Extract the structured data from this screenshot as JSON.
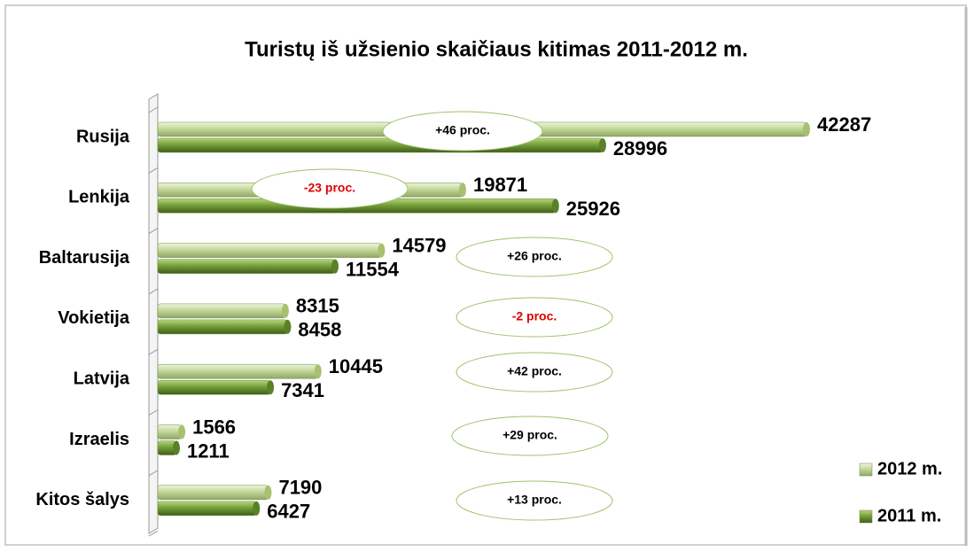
{
  "chart_data": {
    "type": "bar",
    "orientation": "horizontal",
    "title": "Turistų iš užsienio skaičiaus kitimas 2011-2012 m.",
    "categories": [
      "Rusija",
      "Lenkija",
      "Baltarusija",
      "Vokietija",
      "Latvija",
      "Izraelis",
      "Kitos šalys"
    ],
    "series": [
      {
        "name": "2012 m.",
        "color": "#c4d89a",
        "values": [
          42287,
          19871,
          14579,
          8315,
          10445,
          1566,
          7190
        ]
      },
      {
        "name": "2011 m.",
        "color": "#76a03a",
        "values": [
          28996,
          25926,
          11554,
          8458,
          7341,
          1211,
          6427
        ]
      }
    ],
    "annotations": [
      {
        "text": "+46 proc.",
        "color": "#000000"
      },
      {
        "text": "-23 proc.",
        "color": "#e00000"
      },
      {
        "text": "+26 proc.",
        "color": "#000000"
      },
      {
        "text": "-2 proc.",
        "color": "#e00000"
      },
      {
        "text": "+42 proc.",
        "color": "#000000"
      },
      {
        "text": "+29 proc.",
        "color": "#000000"
      },
      {
        "text": "+13 proc.",
        "color": "#000000"
      }
    ],
    "legend": "right"
  }
}
